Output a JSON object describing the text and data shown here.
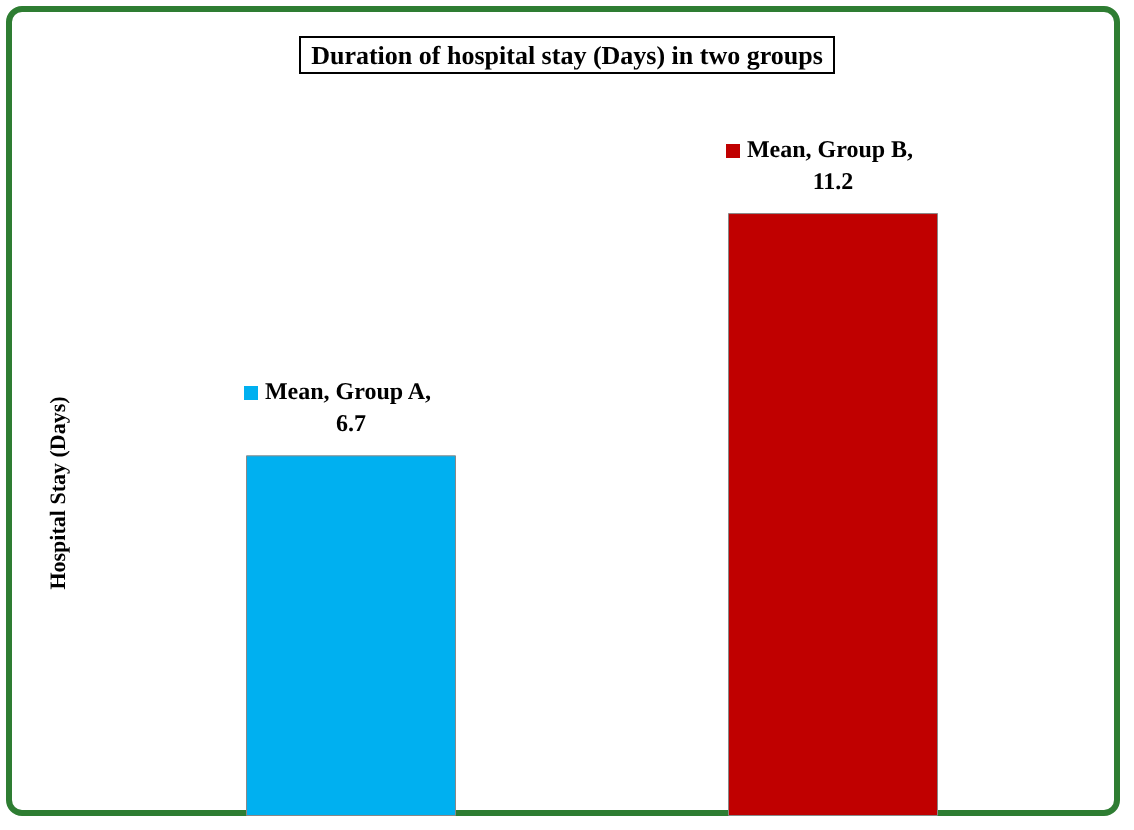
{
  "chart_data": {
    "type": "bar",
    "title": "Duration of hospital stay (Days) in two groups",
    "ylabel": "Hospital Stay (Days)",
    "categories": [
      null,
      null
    ],
    "series": [
      {
        "values": [
          6.7,
          11.2
        ],
        "colors": [
          "#00b0f0",
          "#c00000"
        ],
        "value_labels": [
          "Mean, Group A, 6.7",
          "Mean, Group B, 11.2"
        ]
      }
    ]
  }
}
